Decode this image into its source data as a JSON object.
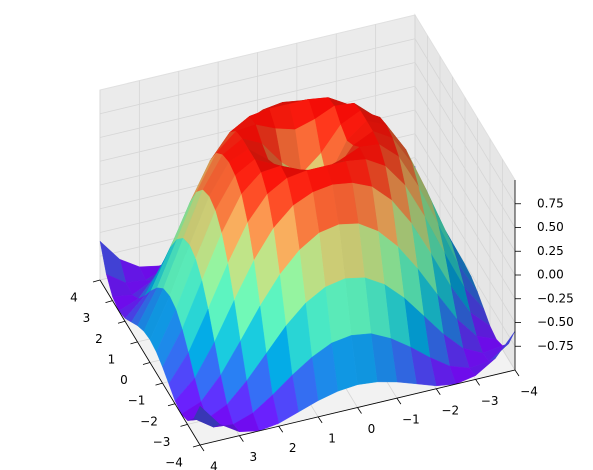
{
  "chart_data": {
    "type": "surface",
    "colormap": "rainbow",
    "grid": true,
    "xlim": [
      -4,
      4
    ],
    "ylim": [
      -4,
      4
    ],
    "zlim": [
      -1,
      1
    ],
    "xticks": [
      {
        "value": -4,
        "label": "−4"
      },
      {
        "value": -3,
        "label": "−3"
      },
      {
        "value": -2,
        "label": "−2"
      },
      {
        "value": -1,
        "label": "−1"
      },
      0,
      1,
      2,
      3,
      4
    ],
    "yticks": [
      {
        "value": -4,
        "label": "−4"
      },
      {
        "value": -3,
        "label": "−3"
      },
      {
        "value": -2,
        "label": "−2"
      },
      {
        "value": -1,
        "label": "−1"
      },
      0,
      1,
      2,
      3,
      4
    ],
    "zticks": [
      {
        "value": -0.75,
        "label": "−0.75"
      },
      {
        "value": -0.5,
        "label": "−0.50"
      },
      {
        "value": -0.25,
        "label": "−0.25"
      },
      {
        "value": 0,
        "label": "0.00"
      },
      0.25,
      {
        "value": 0.5,
        "label": "0.50"
      },
      0.75
    ],
    "x": [
      -4,
      -3.5,
      -3,
      -2.5,
      -2,
      -1.5,
      -1,
      -0.5,
      0,
      0.5,
      1,
      1.5,
      2,
      2.5,
      3,
      3.5,
      4
    ],
    "y": [
      -4,
      -3.5,
      -3,
      -2.5,
      -2,
      -1.5,
      -1,
      -0.5,
      0,
      0.5,
      1,
      1.5,
      2,
      2.5,
      3,
      3.5,
      4
    ],
    "z": [
      [
        -0.59,
        -0.83,
        -0.96,
        -1,
        -0.97,
        -0.9,
        -0.83,
        -0.78,
        -0.76,
        -0.78,
        -0.83,
        -0.9,
        -0.97,
        -1,
        -0.96,
        -0.83,
        -0.59
      ],
      [
        -0.83,
        -0.97,
        -0.99,
        -0.92,
        -0.78,
        -0.62,
        -0.48,
        -0.38,
        -0.35,
        -0.38,
        -0.48,
        -0.62,
        -0.78,
        -0.92,
        -0.99,
        -0.97,
        -0.83
      ],
      [
        -0.96,
        -0.99,
        -0.89,
        -0.69,
        -0.45,
        -0.21,
        -0.02,
        0.1,
        0.14,
        0.1,
        -0.02,
        -0.21,
        -0.45,
        -0.69,
        -0.89,
        -0.99,
        -0.96
      ],
      [
        -1,
        -0.92,
        -0.69,
        -0.38,
        -0.06,
        0.22,
        0.43,
        0.56,
        0.6,
        0.56,
        0.43,
        0.22,
        -0.06,
        -0.38,
        -0.69,
        -0.92,
        -1
      ],
      [
        -0.97,
        -0.78,
        -0.45,
        -0.06,
        0.31,
        0.6,
        0.79,
        0.88,
        0.91,
        0.88,
        0.79,
        0.6,
        0.31,
        -0.06,
        -0.45,
        -0.78,
        -0.97
      ],
      [
        -0.9,
        -0.62,
        -0.21,
        0.22,
        0.6,
        0.85,
        0.97,
        1,
        1,
        1,
        0.97,
        0.85,
        0.6,
        0.22,
        -0.21,
        -0.62,
        -0.9
      ],
      [
        -0.83,
        -0.48,
        -0.02,
        0.43,
        0.79,
        0.97,
        0.99,
        0.9,
        0.84,
        0.9,
        0.99,
        0.97,
        0.79,
        0.43,
        -0.02,
        -0.48,
        -0.83
      ],
      [
        -0.78,
        -0.38,
        0.1,
        0.56,
        0.88,
        1,
        0.9,
        0.65,
        0.48,
        0.65,
        0.9,
        1,
        0.88,
        0.56,
        0.1,
        -0.38,
        -0.78
      ],
      [
        -0.76,
        -0.35,
        0.14,
        0.6,
        0.91,
        1,
        0.84,
        0.48,
        0,
        0.48,
        0.84,
        1,
        0.91,
        0.6,
        0.14,
        -0.35,
        -0.76
      ],
      [
        -0.78,
        -0.38,
        0.1,
        0.56,
        0.88,
        1,
        0.9,
        0.65,
        0.48,
        0.65,
        0.9,
        1,
        0.88,
        0.56,
        0.1,
        -0.38,
        -0.78
      ],
      [
        -0.83,
        -0.48,
        -0.02,
        0.43,
        0.79,
        0.97,
        0.99,
        0.9,
        0.84,
        0.9,
        0.99,
        0.97,
        0.79,
        0.43,
        -0.02,
        -0.48,
        -0.83
      ],
      [
        -0.9,
        -0.62,
        -0.21,
        0.22,
        0.6,
        0.85,
        0.97,
        1,
        1,
        1,
        0.97,
        0.85,
        0.6,
        0.22,
        -0.21,
        -0.62,
        -0.9
      ],
      [
        -0.97,
        -0.78,
        -0.45,
        -0.06,
        0.31,
        0.6,
        0.79,
        0.88,
        0.91,
        0.88,
        0.79,
        0.6,
        0.31,
        -0.06,
        -0.45,
        -0.78,
        -0.97
      ],
      [
        -1,
        -0.92,
        -0.69,
        -0.38,
        -0.06,
        0.22,
        0.43,
        0.56,
        0.6,
        0.56,
        0.43,
        0.22,
        -0.06,
        -0.38,
        -0.69,
        -0.92,
        -1
      ],
      [
        -0.96,
        -0.99,
        -0.89,
        -0.69,
        -0.45,
        -0.21,
        -0.02,
        0.1,
        0.14,
        0.1,
        -0.02,
        -0.21,
        -0.45,
        -0.69,
        -0.89,
        -0.99,
        -0.96
      ],
      [
        -0.83,
        -0.97,
        -0.99,
        -0.92,
        -0.78,
        -0.62,
        -0.48,
        -0.38,
        -0.35,
        -0.38,
        -0.48,
        -0.62,
        -0.78,
        -0.92,
        -0.99,
        -0.97,
        -0.83
      ],
      [
        -0.59,
        -0.83,
        -0.96,
        -1,
        -0.97,
        -0.9,
        -0.83,
        -0.78,
        -0.76,
        -0.78,
        -0.83,
        -0.9,
        -0.97,
        -1,
        -0.96,
        -0.83,
        -0.59
      ]
    ]
  }
}
